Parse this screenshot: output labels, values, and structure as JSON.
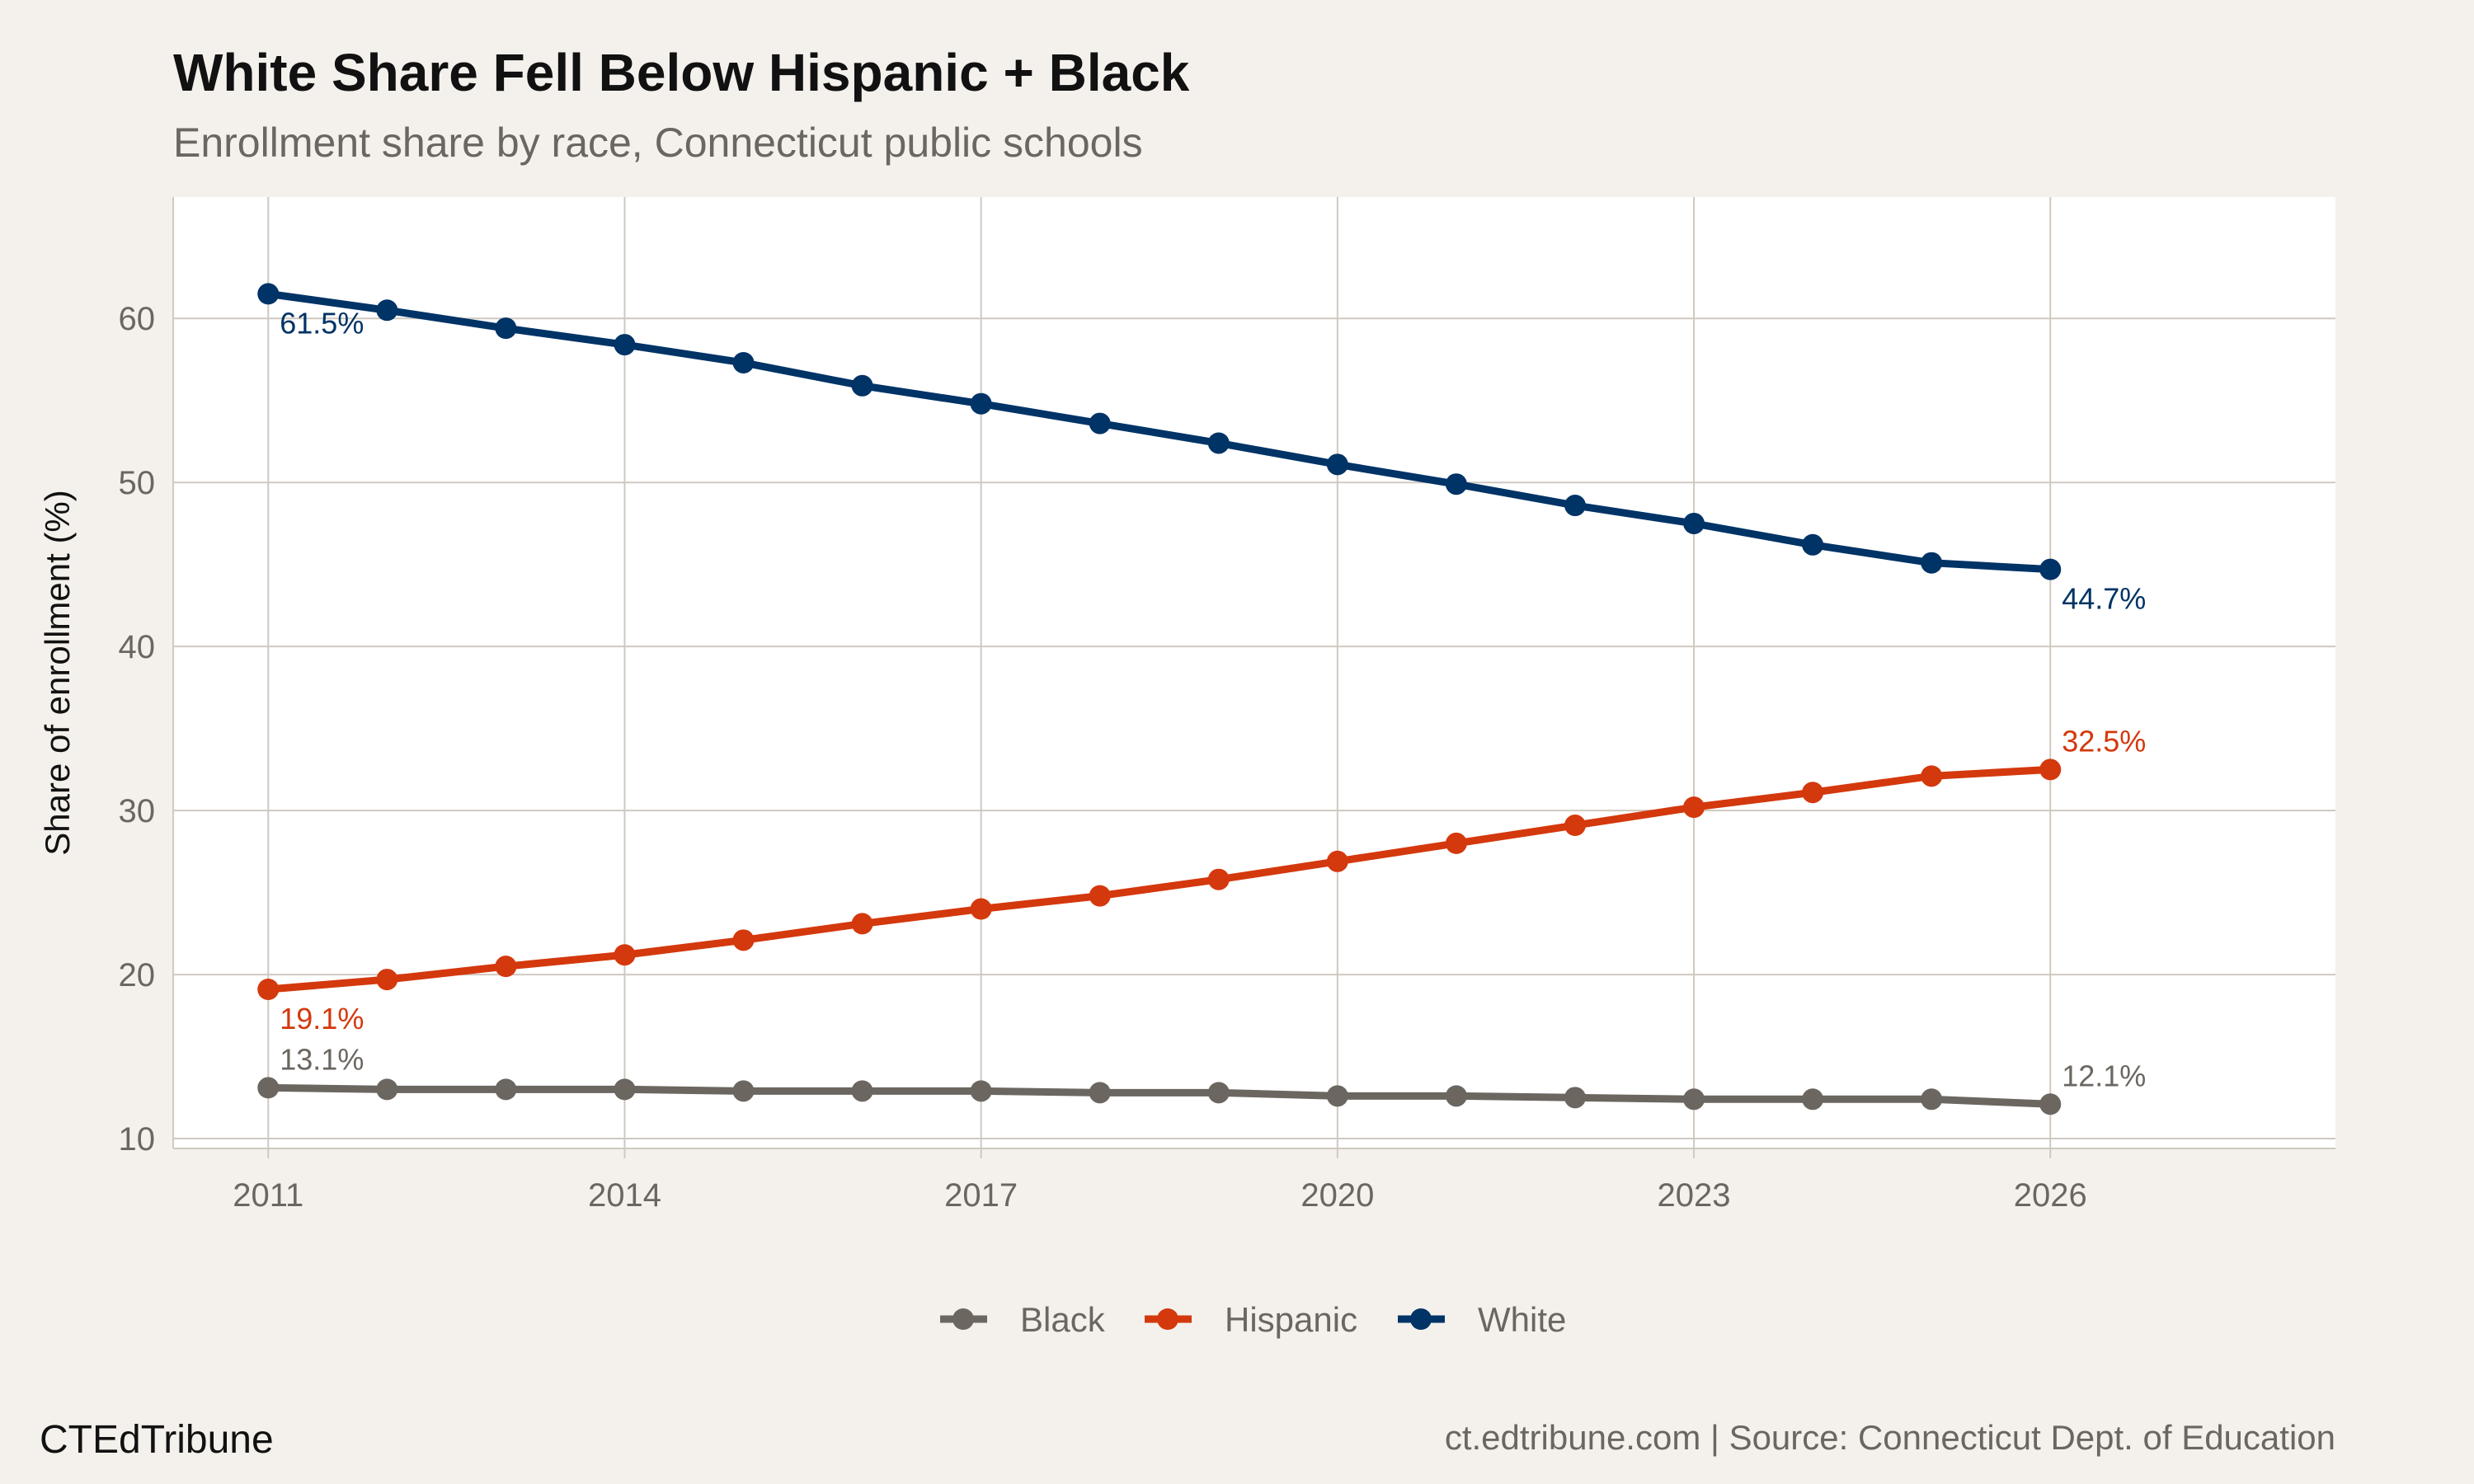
{
  "title": "White Share Fell Below Hispanic + Black",
  "subtitle": "Enrollment share by race, Connecticut public schools",
  "brand": "CTEdTribune",
  "caption": "ct.edtribune.com | Source: Connecticut Dept. of Education",
  "chart_data": {
    "type": "line",
    "title": "White Share Fell Below Hispanic + Black",
    "subtitle": "Enrollment share by race, Connecticut public schools",
    "xlabel": "",
    "ylabel": "Share of enrollment (%)",
    "x": [
      2011,
      2012,
      2013,
      2014,
      2015,
      2016,
      2017,
      2018,
      2019,
      2020,
      2021,
      2022,
      2023,
      2024,
      2025,
      2026
    ],
    "xlim": [
      2010.2,
      2028.4
    ],
    "ylim": [
      9.4,
      67.4
    ],
    "xticks": [
      2011,
      2014,
      2017,
      2020,
      2023,
      2026
    ],
    "xtick_labels": [
      "2011",
      "2014",
      "2017",
      "2020",
      "2023",
      "2026"
    ],
    "yticks": [
      10,
      20,
      30,
      40,
      50,
      60
    ],
    "ytick_labels": [
      "10",
      "20",
      "30",
      "40",
      "50",
      "60"
    ],
    "grid": true,
    "legend_position": "bottom",
    "series": [
      {
        "name": "Black",
        "color": "#6b6660",
        "values": [
          13.1,
          13.0,
          13.0,
          13.0,
          12.9,
          12.9,
          12.9,
          12.8,
          12.8,
          12.6,
          12.6,
          12.5,
          12.4,
          12.4,
          12.4,
          12.1
        ],
        "start_label": "13.1%",
        "end_label": "12.1%"
      },
      {
        "name": "Hispanic",
        "color": "#d4380d",
        "values": [
          19.1,
          19.7,
          20.5,
          21.2,
          22.1,
          23.1,
          24.0,
          24.8,
          25.8,
          26.9,
          28.0,
          29.1,
          30.2,
          31.1,
          32.1,
          32.5
        ],
        "start_label": "19.1%",
        "end_label": "32.5%"
      },
      {
        "name": "White",
        "color": "#003366",
        "values": [
          61.5,
          60.5,
          59.4,
          58.4,
          57.3,
          55.9,
          54.8,
          53.6,
          52.4,
          51.1,
          49.9,
          48.6,
          47.5,
          46.2,
          45.1,
          44.7
        ],
        "start_label": "61.5%",
        "end_label": "44.7%"
      }
    ]
  }
}
